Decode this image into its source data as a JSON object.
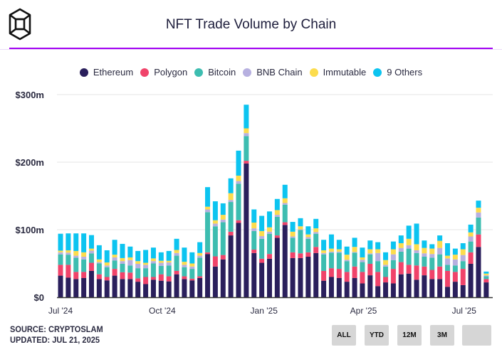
{
  "header": {
    "title": "NFT Trade Volume by Chain",
    "logo": "CryptoSlam cube logo"
  },
  "footer": {
    "source": "SOURCE: CRYPTOSLAM",
    "updated": "UPDATED: JUL 21, 2025"
  },
  "range_buttons": [
    "ALL",
    "YTD",
    "12M",
    "3M",
    ""
  ],
  "chart_data": {
    "type": "bar",
    "stacked": true,
    "title": "NFT Trade Volume by Chain",
    "xlabel": "",
    "ylabel": "",
    "ylim": [
      0,
      300
    ],
    "y_ticks": [
      0,
      100,
      200,
      300
    ],
    "y_tick_labels": [
      "$0",
      "$100m",
      "$200m",
      "$300m"
    ],
    "x_ticks": [
      {
        "date": "2024-07-01",
        "label": "Jul '24"
      },
      {
        "date": "2024-10-01",
        "label": "Oct '24"
      },
      {
        "date": "2025-01-01",
        "label": "Jan '25"
      },
      {
        "date": "2025-04-01",
        "label": "Apr '25"
      },
      {
        "date": "2025-07-01",
        "label": "Jul '25"
      }
    ],
    "grid": true,
    "legend_position": "top",
    "unit": "USD millions",
    "x": [
      "2024-07-01",
      "2024-07-08",
      "2024-07-15",
      "2024-07-22",
      "2024-07-29",
      "2024-08-05",
      "2024-08-12",
      "2024-08-19",
      "2024-08-26",
      "2024-09-02",
      "2024-09-09",
      "2024-09-16",
      "2024-09-23",
      "2024-09-30",
      "2024-10-07",
      "2024-10-14",
      "2024-10-21",
      "2024-10-28",
      "2024-11-04",
      "2024-11-11",
      "2024-11-18",
      "2024-11-25",
      "2024-12-02",
      "2024-12-09",
      "2024-12-16",
      "2024-12-23",
      "2024-12-30",
      "2025-01-06",
      "2025-01-13",
      "2025-01-20",
      "2025-01-27",
      "2025-02-03",
      "2025-02-10",
      "2025-02-17",
      "2025-02-24",
      "2025-03-03",
      "2025-03-10",
      "2025-03-17",
      "2025-03-24",
      "2025-03-31",
      "2025-04-07",
      "2025-04-14",
      "2025-04-21",
      "2025-04-28",
      "2025-05-05",
      "2025-05-12",
      "2025-05-19",
      "2025-05-26",
      "2025-06-02",
      "2025-06-09",
      "2025-06-16",
      "2025-06-23",
      "2025-06-30",
      "2025-07-07",
      "2025-07-14",
      "2025-07-21"
    ],
    "series": [
      {
        "name": "Ethereum",
        "color": "#2a1f5c",
        "values": [
          32,
          29,
          27,
          28.5,
          39,
          27,
          25,
          32,
          27,
          27,
          23,
          19.5,
          26,
          24.5,
          23.5,
          34,
          27,
          25,
          28.5,
          64,
          45.5,
          56,
          91.5,
          110,
          198,
          65.5,
          51,
          57,
          88,
          107,
          58,
          58,
          60,
          65.5,
          24.5,
          30,
          28.5,
          23,
          28.5,
          20.5,
          32.5,
          16.5,
          22,
          20.5,
          34,
          35,
          26,
          32.5,
          27,
          27,
          15.5,
          23,
          18,
          49.5,
          74.5,
          22
        ]
      },
      {
        "name": "Polygon",
        "color": "#f0436a",
        "values": [
          16,
          19,
          10.5,
          9,
          12,
          7,
          5,
          10,
          10,
          9.5,
          5,
          10.5,
          4,
          9.5,
          7.5,
          5,
          4,
          2.5,
          2.5,
          2.5,
          15,
          6.5,
          5.5,
          4,
          4,
          5,
          6,
          7,
          3.5,
          4,
          8.5,
          7,
          6.5,
          9,
          14.5,
          13,
          13.5,
          14.5,
          17,
          17,
          17,
          21,
          8,
          21.5,
          18,
          13,
          21,
          13,
          13.5,
          18.5,
          23.5,
          14.5,
          24,
          17,
          18.5,
          5
        ]
      },
      {
        "name": "Bitcoin",
        "color": "#3dbdb0",
        "values": [
          15.5,
          15,
          21,
          18.5,
          14,
          16,
          14.5,
          12.5,
          12.5,
          10.5,
          15,
          13,
          20,
          12.5,
          16,
          22.5,
          13.5,
          14.5,
          27.5,
          59.5,
          44.5,
          48.5,
          44,
          54,
          36.5,
          27.5,
          29.5,
          30,
          27.5,
          26,
          21.5,
          34.5,
          20,
          19.5,
          24.5,
          23,
          24,
          16,
          20.5,
          14.5,
          14,
          16,
          15.5,
          13,
          15.5,
          24,
          18.5,
          14.5,
          18,
          18,
          9,
          9.5,
          11.5,
          16,
          25,
          4
        ]
      },
      {
        "name": "BNB Chain",
        "color": "#b7b0e0",
        "values": [
          3,
          3,
          3,
          4,
          4,
          2,
          2.5,
          4.5,
          4,
          8,
          6.5,
          5,
          3.5,
          4.5,
          4.5,
          4,
          3.5,
          3.5,
          3,
          4,
          4,
          4,
          3,
          4,
          4.5,
          4,
          4,
          3,
          3,
          2.5,
          2,
          1,
          2.5,
          2.5,
          2,
          1.5,
          1.5,
          2,
          1,
          3.5,
          1.5,
          12,
          2.5,
          8.5,
          5.5,
          5,
          4,
          5,
          5.5,
          9.5,
          9.5,
          9,
          9,
          7.5,
          7.5,
          1.5
        ]
      },
      {
        "name": "Immutable",
        "color": "#fcdc4d",
        "values": [
          2.5,
          3.5,
          7,
          6.5,
          3,
          4,
          4.5,
          4,
          4.5,
          4,
          4,
          3,
          4,
          3,
          2.5,
          4.5,
          4.5,
          4.5,
          4,
          4,
          5,
          7,
          10,
          8,
          7,
          8.5,
          7.5,
          6.5,
          7,
          7,
          7,
          4.5,
          4,
          5.5,
          4,
          4.5,
          3.5,
          7.5,
          7.5,
          3.5,
          6,
          5.5,
          7,
          7.5,
          7,
          9.5,
          9,
          8,
          8,
          10.5,
          4,
          7,
          8.5,
          6,
          7,
          2.5
        ]
      },
      {
        "name": "9 Others",
        "color": "#0cc4f0",
        "values": [
          25,
          25,
          26,
          28,
          20,
          21,
          18,
          22,
          21,
          16,
          15,
          19,
          16,
          12.5,
          14.5,
          16.5,
          21,
          16.5,
          16,
          29,
          28,
          17,
          22,
          37,
          35,
          19.5,
          22.5,
          23.5,
          16.5,
          20,
          14.5,
          12,
          12,
          14,
          15.5,
          21,
          14,
          12,
          13.5,
          14.5,
          13,
          10.5,
          11.5,
          11.5,
          11.5,
          19.5,
          30.5,
          11,
          6.5,
          8,
          18.5,
          9,
          9,
          11.5,
          10.5,
          3
        ]
      }
    ]
  }
}
